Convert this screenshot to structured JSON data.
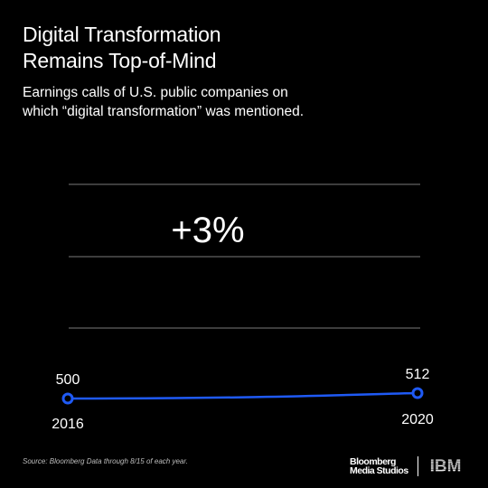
{
  "title_line1": "Digital Transformation",
  "title_line2": "Remains Top-of-Mind",
  "subtitle_line1": "Earnings calls of U.S. public companies on",
  "subtitle_line2": "which “digital transformation” was mentioned.",
  "source": "Source: Bloomberg Data through 8/15 of each year.",
  "logo_line1": "Bloomberg",
  "logo_line2": "Media Studios",
  "logo_ibm": "IBM",
  "colors": {
    "accent": "#1f5af5",
    "grid": "#7a7a7a",
    "background": "#000000"
  },
  "chart_data": {
    "type": "line",
    "x": [
      "2016",
      "2020"
    ],
    "series": [
      {
        "values": [
          500,
          512
        ]
      }
    ],
    "callout": "+3%",
    "point_labels": [
      "500",
      "512"
    ],
    "grid": true
  }
}
